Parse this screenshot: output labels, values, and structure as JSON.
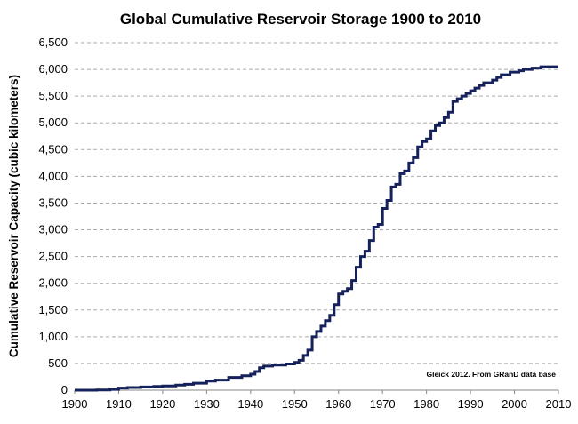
{
  "chart_data": {
    "type": "line",
    "step": true,
    "title": "Global Cumulative Reservoir Storage 1900 to 2010",
    "xlabel": "",
    "ylabel": "Cumulative Reservoir Capacity (cubic kilometers)",
    "annotation": "Gleick 2012. From GRanD data base",
    "xlim": [
      1900,
      2010
    ],
    "ylim": [
      0,
      6500
    ],
    "x_ticks": [
      "1900",
      "1910",
      "1920",
      "1930",
      "1940",
      "1950",
      "1960",
      "1970",
      "1980",
      "1990",
      "2000",
      "2010"
    ],
    "y_ticks": [
      "0",
      "500",
      "1,000",
      "1,500",
      "2,000",
      "2,500",
      "3,000",
      "3,500",
      "4,000",
      "4,500",
      "5,000",
      "5,500",
      "6,000",
      "6,500"
    ],
    "grid": "horizontal dashed",
    "line_color": "#14215a",
    "x": [
      1900,
      1905,
      1908,
      1910,
      1912,
      1915,
      1918,
      1920,
      1923,
      1925,
      1927,
      1930,
      1932,
      1935,
      1938,
      1940,
      1941,
      1942,
      1943,
      1945,
      1948,
      1950,
      1951,
      1952,
      1953,
      1954,
      1955,
      1956,
      1957,
      1958,
      1959,
      1960,
      1961,
      1962,
      1963,
      1964,
      1965,
      1966,
      1967,
      1968,
      1969,
      1970,
      1971,
      1972,
      1973,
      1974,
      1975,
      1976,
      1977,
      1978,
      1979,
      1980,
      1981,
      1982,
      1983,
      1984,
      1985,
      1986,
      1987,
      1988,
      1989,
      1990,
      1991,
      1992,
      1993,
      1995,
      1996,
      1997,
      1999,
      2001,
      2002,
      2004,
      2006,
      2010
    ],
    "y": [
      0,
      5,
      15,
      40,
      50,
      60,
      70,
      80,
      95,
      110,
      130,
      170,
      190,
      240,
      270,
      300,
      350,
      420,
      450,
      470,
      490,
      520,
      560,
      650,
      750,
      1000,
      1100,
      1200,
      1300,
      1400,
      1600,
      1800,
      1850,
      1900,
      2050,
      2300,
      2500,
      2600,
      2800,
      3050,
      3100,
      3400,
      3550,
      3800,
      3850,
      4050,
      4100,
      4250,
      4350,
      4550,
      4650,
      4700,
      4850,
      4950,
      5000,
      5100,
      5200,
      5400,
      5450,
      5500,
      5550,
      5600,
      5650,
      5700,
      5750,
      5800,
      5850,
      5900,
      5950,
      5975,
      6000,
      6025,
      6050,
      6050
    ]
  }
}
